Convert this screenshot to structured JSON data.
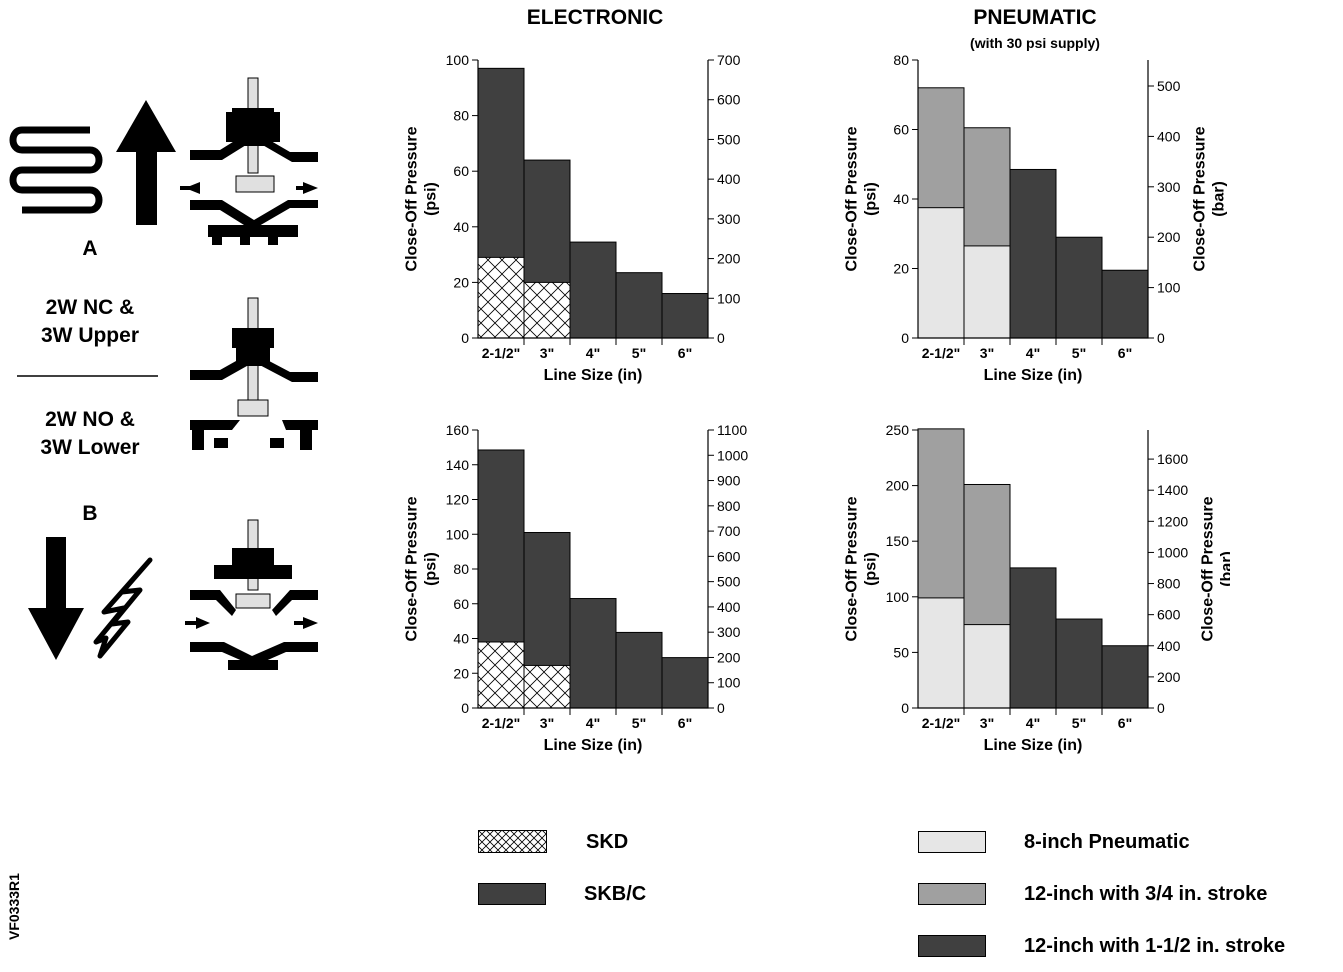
{
  "headers": {
    "electronic": "ELECTRONIC",
    "pneumatic": "PNEUMATIC",
    "pneumatic_sub": "(with 30 psi supply)"
  },
  "diagram": {
    "label_a": "A",
    "label_b": "B",
    "upper_line1": "2W NC &",
    "upper_line2": "3W Upper",
    "lower_line1": "2W NO &",
    "lower_line2": "3W Lower"
  },
  "figure_code": "VF0333R1",
  "legend": {
    "electronic": [
      {
        "label": "SKD",
        "fill": "hatch"
      },
      {
        "label": "SKB/C",
        "fill": "#404040"
      }
    ],
    "pneumatic": [
      {
        "label": "8-inch Pneumatic",
        "fill": "#e6e6e6"
      },
      {
        "label": "12-inch with 3/4 in. stroke",
        "fill": "#a0a0a0"
      },
      {
        "label": "12-inch with 1-1/2 in. stroke",
        "fill": "#404040"
      }
    ]
  },
  "chart_data": [
    {
      "type": "bar",
      "panel": "electronic-top",
      "categories": [
        "2-1/2\"",
        "3\"",
        "4\"",
        "5\"",
        "6\""
      ],
      "series": [
        {
          "name": "SKB/C",
          "values": [
            97,
            64,
            34.5,
            23.5,
            16
          ],
          "fill": "#404040"
        },
        {
          "name": "SKD",
          "values": [
            29,
            20,
            null,
            null,
            null
          ],
          "fill": "hatch"
        }
      ],
      "xlabel": "Line Size (in)",
      "ylabel": "Close-Off Pressure\n(psi)",
      "ylabel2": "Close-Off Pressure\n(bar)",
      "ylim": [
        0,
        100
      ],
      "yticks": [
        0,
        20,
        40,
        60,
        80,
        100
      ],
      "y2lim": [
        0,
        700
      ],
      "y2ticks": [
        0,
        100,
        200,
        300,
        400,
        500,
        600,
        700
      ]
    },
    {
      "type": "bar",
      "panel": "pneumatic-top",
      "categories": [
        "2-1/2\"",
        "3\"",
        "4\"",
        "5\"",
        "6\""
      ],
      "series": [
        {
          "name": "12-inch with 3/4 in. stroke",
          "values": [
            72,
            60.5,
            null,
            null,
            null
          ],
          "fill": "#a0a0a0"
        },
        {
          "name": "12-inch with 1-1/2 in. stroke",
          "values": [
            null,
            null,
            48.5,
            29,
            19.5
          ],
          "fill": "#404040"
        },
        {
          "name": "8-inch Pneumatic",
          "values": [
            37.5,
            26.5,
            null,
            null,
            null
          ],
          "fill": "#e6e6e6"
        }
      ],
      "xlabel": "Line Size (in)",
      "ylabel": "Close-Off Pressure\n(psi)",
      "ylabel2": "Close-Off Pressure\n(bar)",
      "ylim": [
        0,
        80
      ],
      "yticks": [
        0,
        20,
        40,
        60,
        80
      ],
      "y2lim": [
        0,
        551.6
      ],
      "y2ticks": [
        0,
        100,
        200,
        300,
        400,
        500
      ]
    },
    {
      "type": "bar",
      "panel": "electronic-bottom",
      "categories": [
        "2-1/2\"",
        "3\"",
        "4\"",
        "5\"",
        "6\""
      ],
      "series": [
        {
          "name": "SKB/C",
          "values": [
            148.5,
            101,
            63,
            43.5,
            29
          ],
          "fill": "#404040"
        },
        {
          "name": "SKD",
          "values": [
            38,
            24.5,
            null,
            null,
            null
          ],
          "fill": "hatch"
        }
      ],
      "xlabel": "Line Size (in)",
      "ylabel": "Close-Off Pressure\n(psi)",
      "ylabel2": "Close-Off Pressure\n(bar)",
      "ylim": [
        0,
        160
      ],
      "yticks": [
        0,
        20,
        40,
        60,
        80,
        100,
        120,
        140,
        160
      ],
      "y2lim": [
        0,
        1100
      ],
      "y2ticks": [
        0,
        100,
        200,
        300,
        400,
        500,
        600,
        700,
        800,
        900,
        1000,
        1100
      ]
    },
    {
      "type": "bar",
      "panel": "pneumatic-bottom",
      "categories": [
        "2-1/2\"",
        "3\"",
        "4\"",
        "5\"",
        "6\""
      ],
      "series": [
        {
          "name": "12-inch with 3/4 in. stroke",
          "values": [
            251,
            201,
            null,
            null,
            null
          ],
          "fill": "#a0a0a0"
        },
        {
          "name": "12-inch with 1-1/2 in. stroke",
          "values": [
            null,
            null,
            126,
            80,
            56
          ],
          "fill": "#404040"
        },
        {
          "name": "8-inch Pneumatic",
          "values": [
            99,
            75,
            null,
            null,
            null
          ],
          "fill": "#e6e6e6"
        }
      ],
      "xlabel": "Line Size (in)",
      "ylabel": "Close-Off Pressure\n(psi)",
      "ylabel2": "Close-Off Pressure\n(bar)",
      "ylim": [
        0,
        250
      ],
      "yticks": [
        0,
        50,
        100,
        150,
        200,
        250
      ],
      "y2lim": [
        0,
        1787
      ],
      "y2ticks": [
        0,
        200,
        400,
        600,
        800,
        1000,
        1200,
        1400,
        1600
      ]
    }
  ]
}
